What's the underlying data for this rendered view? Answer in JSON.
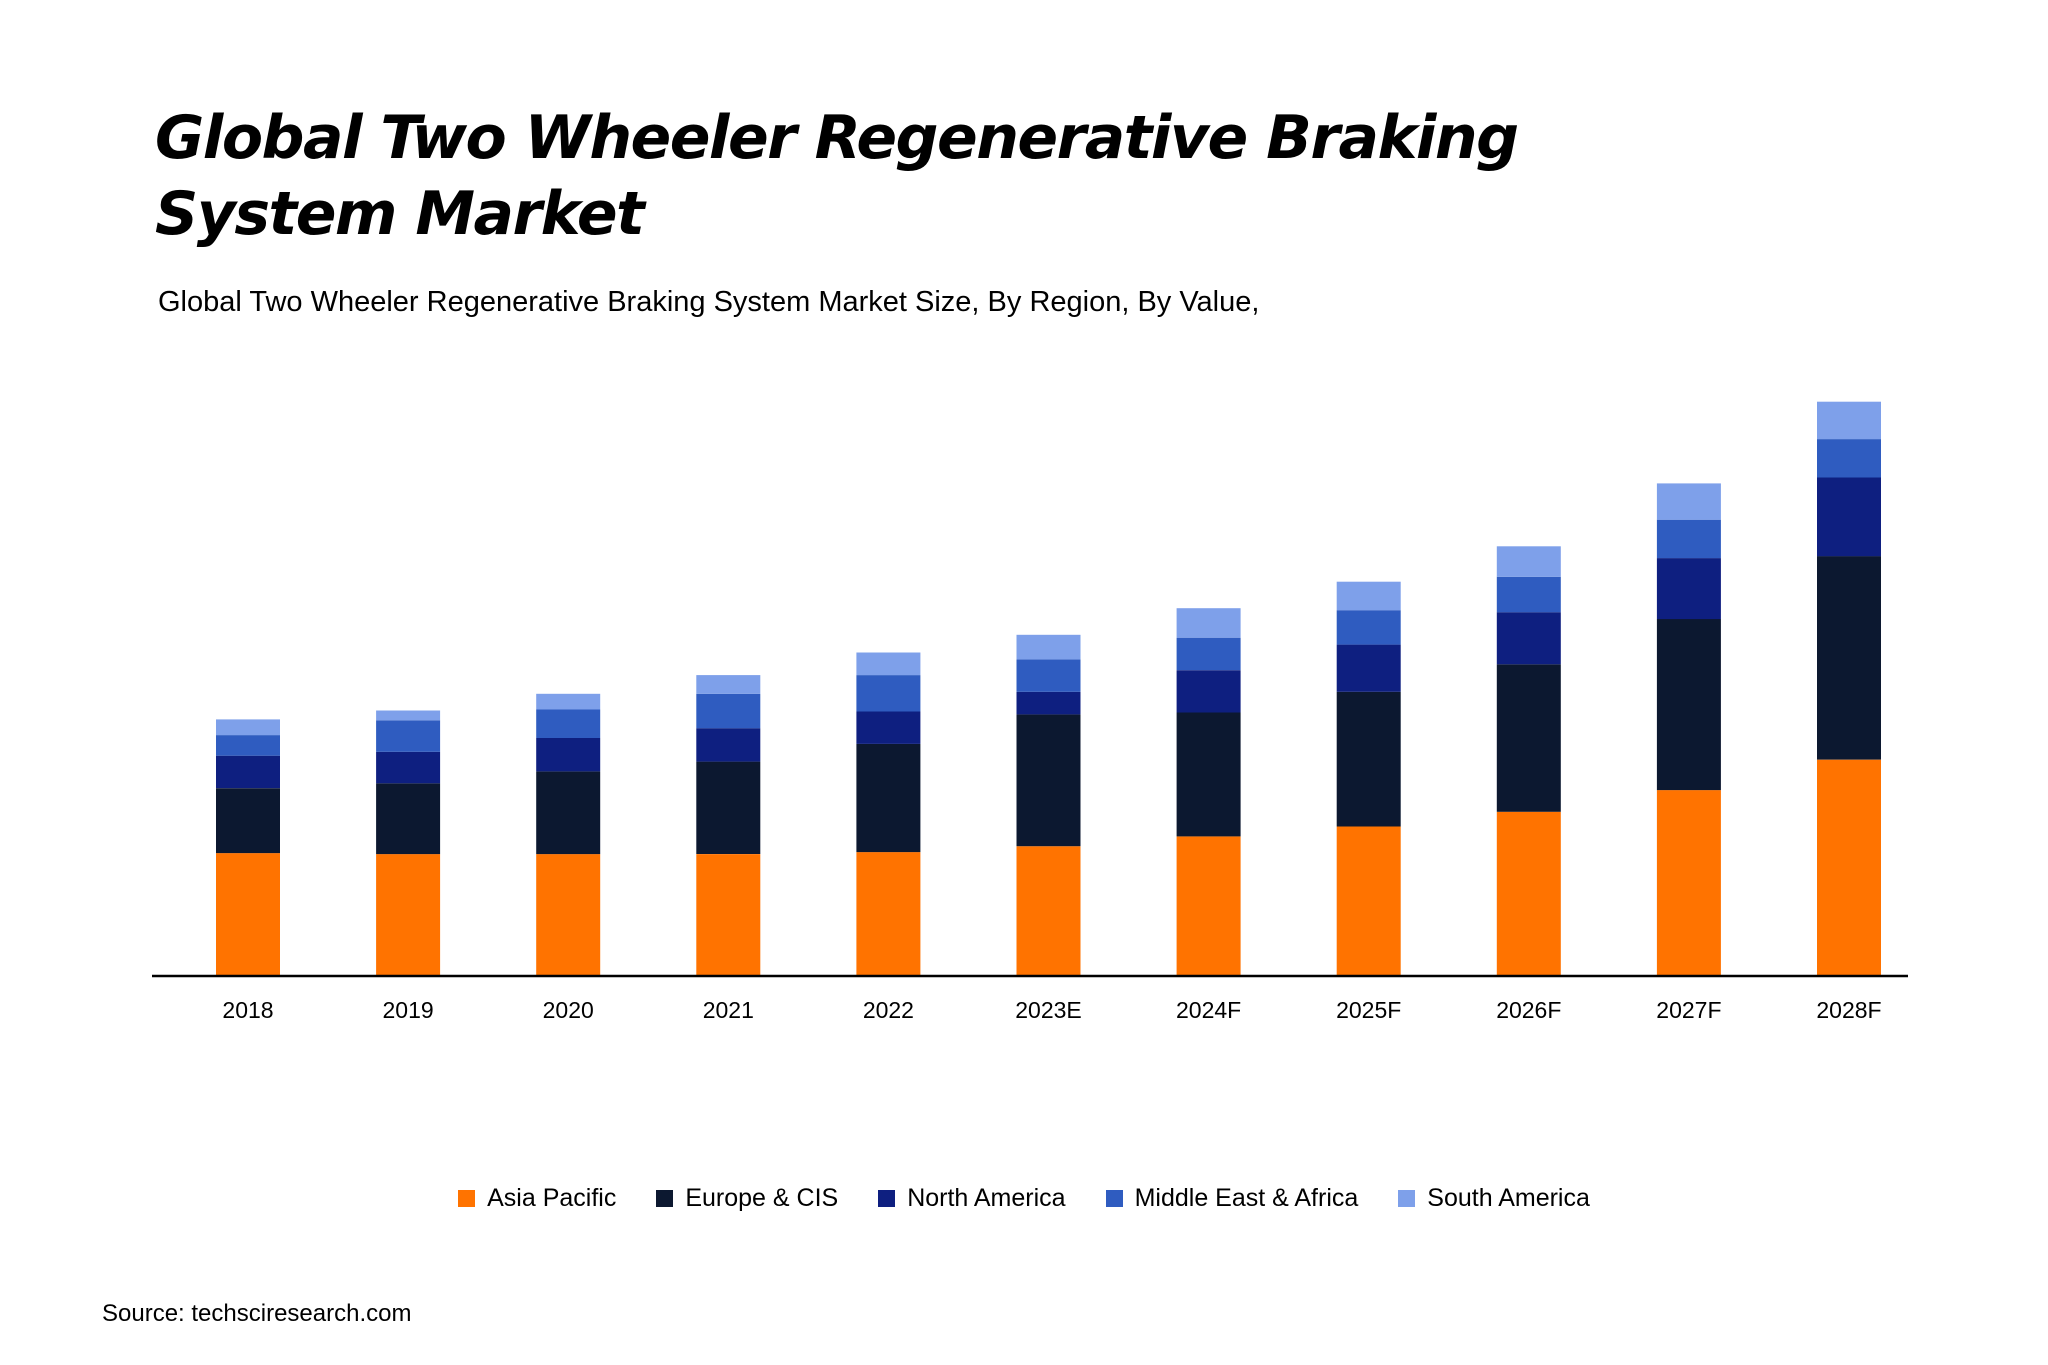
{
  "chart_data": {
    "type": "bar",
    "stacked": true,
    "title": "Global Two Wheeler Regenerative Braking System Market",
    "subtitle": "Global Two Wheeler Regenerative Braking System Market Size, By Region, By Value,",
    "xlabel": "",
    "ylabel": "",
    "ylim": [
      0,
      600
    ],
    "grid": false,
    "legend_position": "bottom",
    "categories": [
      "2018",
      "2019",
      "2020",
      "2021",
      "2022",
      "2023E",
      "2024F",
      "2025F",
      "2026F",
      "2027F",
      "2028F"
    ],
    "series": [
      {
        "name": "Asia Pacific",
        "color": "#FF7300",
        "values": [
          125,
          124,
          124,
          124,
          126,
          132,
          142,
          152,
          167,
          189,
          220
        ]
      },
      {
        "name": "Europe & CIS",
        "color": "#0C1830",
        "values": [
          66,
          72,
          84,
          94,
          110,
          134,
          126,
          137,
          150,
          174,
          207
        ]
      },
      {
        "name": "North America",
        "color": "#0E1F80",
        "values": [
          33,
          32,
          34,
          34,
          33,
          23,
          43,
          48,
          53,
          62,
          80
        ]
      },
      {
        "name": "Middle East & Africa",
        "color": "#2F5CC0",
        "values": [
          21,
          32,
          29,
          35,
          37,
          33,
          33,
          35,
          36,
          39,
          39
        ]
      },
      {
        "name": "South America",
        "color": "#7EA0EA",
        "values": [
          16,
          10,
          16,
          19,
          23,
          25,
          30,
          29,
          31,
          37,
          38
        ]
      }
    ]
  },
  "source": "Source: techsciresearch.com"
}
